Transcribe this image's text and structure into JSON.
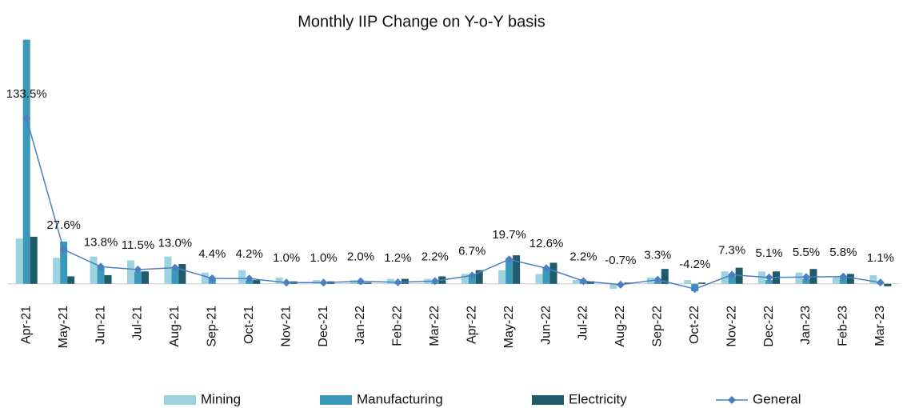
{
  "chart_data": {
    "type": "bar",
    "title": "Monthly IIP Change on Y-o-Y basis",
    "categories": [
      "Apr-21",
      "May-21",
      "Jun-21",
      "Jul-21",
      "Aug-21",
      "Sep-21",
      "Oct-21",
      "Nov-21",
      "Dec-21",
      "Jan-22",
      "Feb-22",
      "Mar-22",
      "Apr-22",
      "May-22",
      "Jun-22",
      "Jul-22",
      "Aug-22",
      "Sep-22",
      "Oct-22",
      "Nov-22",
      "Dec-22",
      "Jan-23",
      "Feb-23",
      "Mar-23"
    ],
    "ylim": [
      -15,
      200
    ],
    "series": [
      {
        "name": "Mining",
        "type": "bar",
        "color": "#9dd3e0",
        "values": [
          36.5,
          21,
          22,
          19,
          22,
          9,
          11,
          5,
          3,
          3,
          4,
          4,
          8,
          11,
          8,
          3,
          -4,
          5,
          3,
          10,
          10,
          9,
          5,
          7
        ]
      },
      {
        "name": "Manufacturing",
        "type": "bar",
        "color": "#3a98b9",
        "values": [
          197,
          34,
          13,
          10,
          12,
          4,
          3,
          0,
          0,
          1,
          0.5,
          1,
          6,
          20,
          13,
          2,
          -0.5,
          2,
          -6,
          6,
          3,
          4,
          5,
          0.5
        ]
      },
      {
        "name": "Electricity",
        "type": "bar",
        "color": "#1f5b6b",
        "values": [
          38,
          6,
          7,
          10,
          16,
          0,
          3,
          2,
          2,
          1,
          4,
          6,
          11,
          23,
          17,
          2,
          1,
          12,
          1,
          13,
          10,
          12,
          8,
          -2
        ]
      },
      {
        "name": "General",
        "type": "line",
        "color": "#4a7fc1",
        "values": [
          133.5,
          27.6,
          13.8,
          11.5,
          13.0,
          4.4,
          4.2,
          1.0,
          1.0,
          2.0,
          1.2,
          2.2,
          6.7,
          19.7,
          12.6,
          2.2,
          -0.7,
          3.3,
          -4.2,
          7.3,
          5.1,
          5.5,
          5.8,
          1.1
        ],
        "value_labels": [
          "133.5%",
          "27.6%",
          "13.8%",
          "11.5%",
          "13.0%",
          "4.4%",
          "4.2%",
          "1.0%",
          "1.0%",
          "2.0%",
          "1.2%",
          "2.2%",
          "6.7%",
          "19.7%",
          "12.6%",
          "2.2%",
          "-0.7%",
          "3.3%",
          "-4.2%",
          "7.3%",
          "5.1%",
          "5.5%",
          "5.8%",
          "1.1%"
        ]
      }
    ]
  }
}
